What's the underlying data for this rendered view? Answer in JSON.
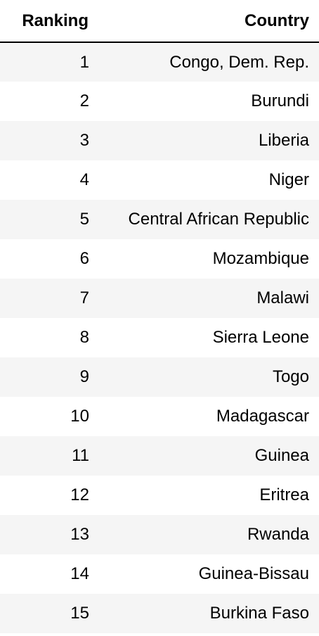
{
  "table": {
    "headers": [
      "Ranking",
      "Country"
    ],
    "rows": [
      [
        "1",
        "Congo, Dem. Rep."
      ],
      [
        "2",
        "Burundi"
      ],
      [
        "3",
        "Liberia"
      ],
      [
        "4",
        "Niger"
      ],
      [
        "5",
        "Central African Republic"
      ],
      [
        "6",
        "Mozambique"
      ],
      [
        "7",
        "Malawi"
      ],
      [
        "8",
        "Sierra Leone"
      ],
      [
        "9",
        "Togo"
      ],
      [
        "10",
        "Madagascar"
      ],
      [
        "11",
        "Guinea"
      ],
      [
        "12",
        "Eritrea"
      ],
      [
        "13",
        "Rwanda"
      ],
      [
        "14",
        "Guinea-Bissau"
      ],
      [
        "15",
        "Burkina Faso"
      ]
    ]
  },
  "colors": {
    "striped_row": "#f5f5f5",
    "header_rule": "#000000"
  }
}
